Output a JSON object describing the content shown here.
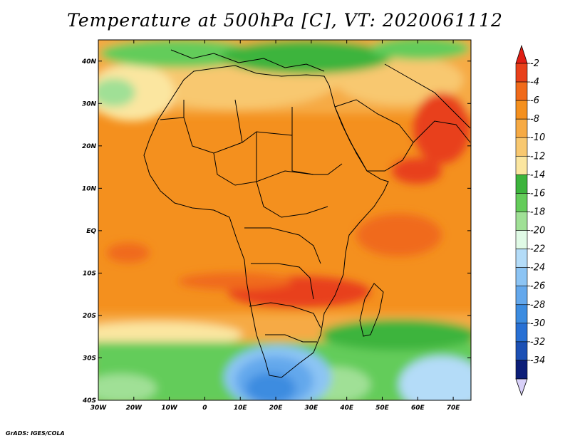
{
  "title": "Temperature at 500hPa [C], VT: 2020061112",
  "credit": "GrADS: IGES/COLA",
  "map": {
    "lon_range": [
      -30,
      75
    ],
    "lat_range": [
      -40,
      45
    ],
    "lon_ticks": [
      {
        "value": -30,
        "label": "30W"
      },
      {
        "value": -20,
        "label": "20W"
      },
      {
        "value": -10,
        "label": "10W"
      },
      {
        "value": 0,
        "label": "0"
      },
      {
        "value": 10,
        "label": "10E"
      },
      {
        "value": 20,
        "label": "20E"
      },
      {
        "value": 30,
        "label": "30E"
      },
      {
        "value": 40,
        "label": "40E"
      },
      {
        "value": 50,
        "label": "50E"
      },
      {
        "value": 60,
        "label": "60E"
      },
      {
        "value": 70,
        "label": "70E"
      }
    ],
    "lat_ticks": [
      {
        "value": 40,
        "label": "40N"
      },
      {
        "value": 30,
        "label": "30N"
      },
      {
        "value": 20,
        "label": "20N"
      },
      {
        "value": 10,
        "label": "10N"
      },
      {
        "value": 0,
        "label": "EQ"
      },
      {
        "value": -10,
        "label": "10S"
      },
      {
        "value": -20,
        "label": "20S"
      },
      {
        "value": -30,
        "label": "30S"
      },
      {
        "value": -40,
        "label": "40S"
      }
    ]
  },
  "colorbar": {
    "levels": [
      "-2",
      "-4",
      "-6",
      "-8",
      "-10",
      "-12",
      "-14",
      "-16",
      "-18",
      "-20",
      "-22",
      "-24",
      "-26",
      "-28",
      "-30",
      "-32",
      "-34"
    ],
    "colors": [
      "#e8401a",
      "#f06a1a",
      "#f4901e",
      "#f6aa44",
      "#f8c870",
      "#fbe6a0",
      "#3cb43c",
      "#64cc5a",
      "#a0e096",
      "#e0fae6",
      "#b4dcf8",
      "#8cc4f4",
      "#64a8ec",
      "#3c8ce0",
      "#2870d4",
      "#1c50b4",
      "#0c1e78"
    ],
    "top_arrow_color": "#e01e14",
    "bottom_arrow_color": "#d8d0f8"
  }
}
